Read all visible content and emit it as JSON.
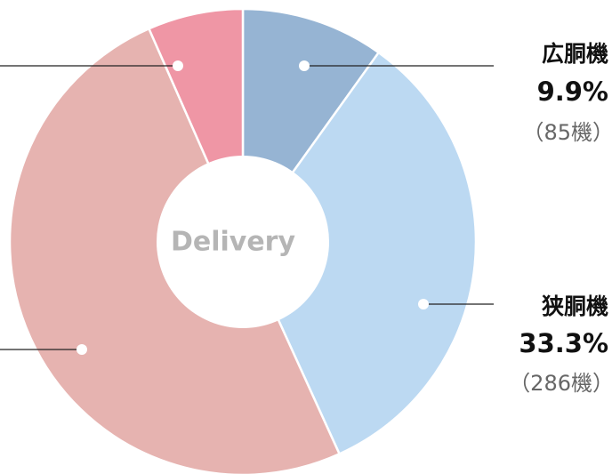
{
  "chart_data": {
    "type": "donut",
    "center_label": "Delivery",
    "categories": [
      "広胴機",
      "狭胴機",
      null,
      null
    ],
    "values": [
      9.9,
      33.3,
      50.2,
      6.6
    ],
    "value_labels": [
      "9.9%",
      "33.3%",
      null,
      null
    ],
    "count_labels": [
      "（85機）",
      "（286機）",
      null,
      null
    ],
    "colors": [
      "#96b4d3",
      "#bcd9f2",
      "#e6b3b0",
      "#ef96a5"
    ]
  }
}
